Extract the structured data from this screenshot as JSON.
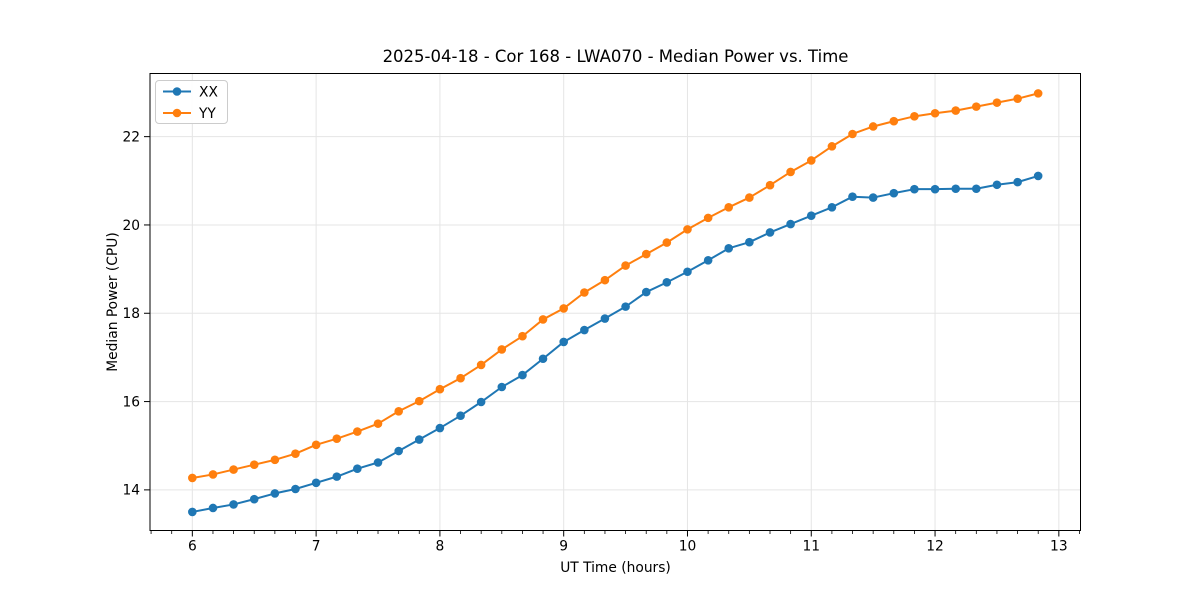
{
  "figure": {
    "title": "2025-04-18 - Cor 168 - LWA070 - Median Power vs. Time",
    "xlabel": "UT Time (hours)",
    "ylabel": "Median Power (CPU)"
  },
  "colors": {
    "series_xx": "#1f77b4",
    "series_yy": "#ff7f0e",
    "grid": "#e5e5e5",
    "spine": "#000000",
    "legend_border": "#cccccc",
    "background": "#ffffff"
  },
  "legend": {
    "position": "upper left",
    "entries": [
      {
        "label": "XX",
        "color": "#1f77b4"
      },
      {
        "label": "YY",
        "color": "#ff7f0e"
      }
    ]
  },
  "chart_data": {
    "type": "line",
    "title": "2025-04-18 - Cor 168 - LWA070 - Median Power vs. Time",
    "xlabel": "UT Time (hours)",
    "ylabel": "Median Power (CPU)",
    "xlim": [
      5.658,
      13.175
    ],
    "ylim": [
      13.08,
      23.43
    ],
    "x_ticks": [
      6,
      7,
      8,
      9,
      10,
      11,
      12,
      13
    ],
    "y_ticks": [
      14,
      16,
      18,
      20,
      22
    ],
    "x_minor_tick_step": 0.1667,
    "grid": true,
    "legend_position": "upper left",
    "marker": "circle",
    "x": [
      6.0,
      6.167,
      6.333,
      6.5,
      6.667,
      6.833,
      7.0,
      7.167,
      7.333,
      7.5,
      7.667,
      7.833,
      8.0,
      8.167,
      8.333,
      8.5,
      8.667,
      8.833,
      9.0,
      9.167,
      9.333,
      9.5,
      9.667,
      9.833,
      10.0,
      10.167,
      10.333,
      10.5,
      10.667,
      10.833,
      11.0,
      11.167,
      11.333,
      11.5,
      11.667,
      11.833,
      12.0,
      12.167,
      12.333,
      12.5,
      12.667,
      12.833
    ],
    "series": [
      {
        "name": "XX",
        "color": "#1f77b4",
        "values": [
          13.5,
          13.59,
          13.67,
          13.79,
          13.92,
          14.02,
          14.16,
          14.3,
          14.48,
          14.62,
          14.88,
          15.14,
          15.4,
          15.68,
          15.99,
          16.33,
          16.6,
          16.97,
          17.35,
          17.62,
          17.88,
          18.15,
          18.48,
          18.7,
          18.94,
          19.2,
          19.47,
          19.61,
          19.83,
          20.02,
          20.21,
          20.4,
          20.64,
          20.62,
          20.72,
          20.81,
          20.81,
          20.82,
          20.82,
          20.91,
          20.97,
          21.11
        ]
      },
      {
        "name": "YY",
        "color": "#ff7f0e",
        "values": [
          14.27,
          14.35,
          14.46,
          14.57,
          14.68,
          14.82,
          15.02,
          15.16,
          15.32,
          15.5,
          15.78,
          16.01,
          16.28,
          16.53,
          16.83,
          17.18,
          17.48,
          17.86,
          18.11,
          18.47,
          18.75,
          19.08,
          19.34,
          19.6,
          19.9,
          20.16,
          20.4,
          20.62,
          20.9,
          21.2,
          21.46,
          21.78,
          22.06,
          22.23,
          22.35,
          22.46,
          22.53,
          22.59,
          22.68,
          22.77,
          22.86,
          22.98
        ]
      }
    ]
  }
}
